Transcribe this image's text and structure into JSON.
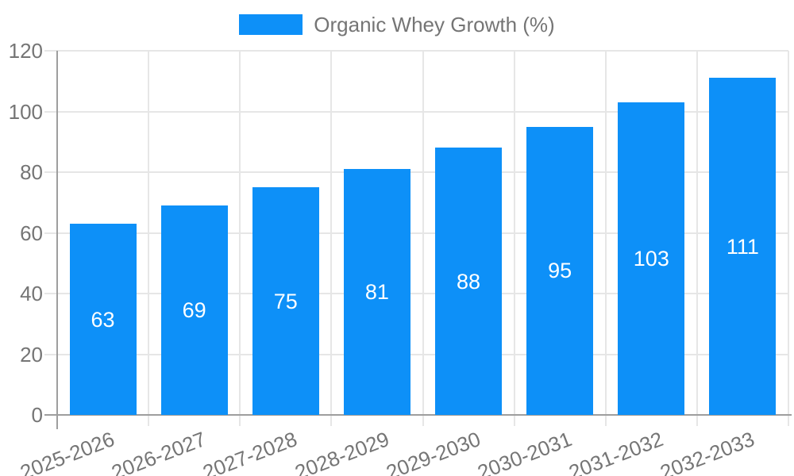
{
  "legend": {
    "label": "Organic Whey Growth (%)"
  },
  "chart_data": {
    "type": "bar",
    "title": "",
    "series_name": "Organic Whey Growth (%)",
    "categories": [
      "2025-2026",
      "2026-2027",
      "2027-2028",
      "2028-2029",
      "2029-2030",
      "2030-2031",
      "2031-2032",
      "2032-2033"
    ],
    "values": [
      63,
      69,
      75,
      81,
      88,
      95,
      103,
      111
    ],
    "xlabel": "",
    "ylabel": "",
    "ylim": [
      0,
      120
    ],
    "yticks": [
      0,
      20,
      40,
      60,
      80,
      100,
      120
    ],
    "grid": true,
    "legend_position": "top-center",
    "bar_label_position": "inside-center",
    "colors": {
      "bar": "#0d90f8",
      "bar_label": "#ffffff",
      "grid": "#e6e6e6",
      "axis": "#9e9e9e",
      "text": "#757575",
      "background": "#ffffff"
    }
  }
}
